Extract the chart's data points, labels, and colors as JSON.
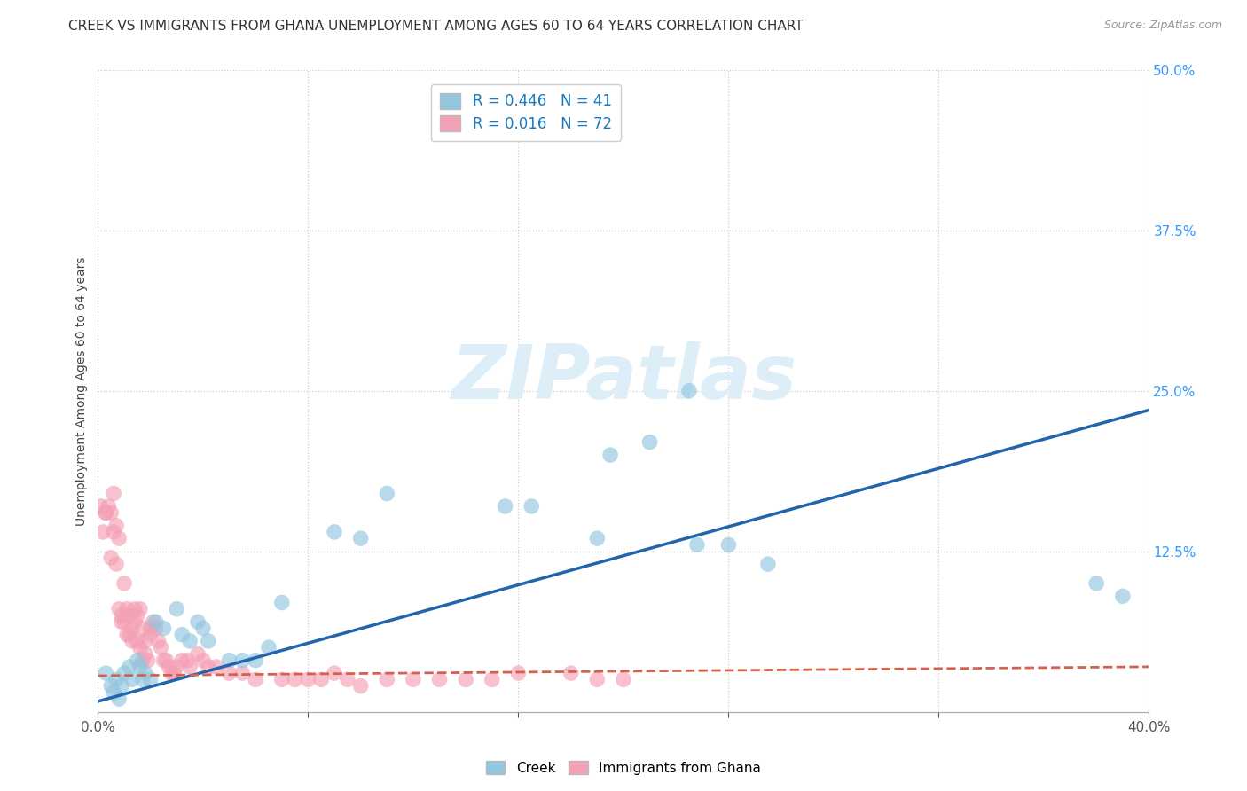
{
  "title": "CREEK VS IMMIGRANTS FROM GHANA UNEMPLOYMENT AMONG AGES 60 TO 64 YEARS CORRELATION CHART",
  "source": "Source: ZipAtlas.com",
  "ylabel": "Unemployment Among Ages 60 to 64 years",
  "xlim": [
    0.0,
    0.4
  ],
  "ylim": [
    0.0,
    0.5
  ],
  "xticks": [
    0.0,
    0.08,
    0.16,
    0.24,
    0.32,
    0.4
  ],
  "yticks": [
    0.0,
    0.125,
    0.25,
    0.375,
    0.5
  ],
  "xticklabels": [
    "0.0%",
    "",
    "",
    "",
    "",
    "40.0%"
  ],
  "yticklabels_right": [
    "",
    "12.5%",
    "25.0%",
    "37.5%",
    "50.0%"
  ],
  "creek_color": "#92c5de",
  "ghana_color": "#f4a0b5",
  "creek_R": 0.446,
  "creek_N": 41,
  "ghana_R": 0.016,
  "ghana_N": 72,
  "creek_line_color": "#2166ac",
  "ghana_line_color": "#d6604d",
  "creek_line_x": [
    0.0,
    0.4
  ],
  "creek_line_y": [
    0.008,
    0.235
  ],
  "ghana_line_x": [
    0.0,
    0.4
  ],
  "ghana_line_y": [
    0.028,
    0.035
  ],
  "creek_scatter_x": [
    0.003,
    0.005,
    0.006,
    0.007,
    0.008,
    0.009,
    0.01,
    0.012,
    0.013,
    0.015,
    0.016,
    0.017,
    0.018,
    0.02,
    0.022,
    0.025,
    0.03,
    0.032,
    0.035,
    0.038,
    0.04,
    0.042,
    0.05,
    0.055,
    0.06,
    0.065,
    0.07,
    0.09,
    0.1,
    0.11,
    0.155,
    0.165,
    0.19,
    0.195,
    0.21,
    0.225,
    0.228,
    0.24,
    0.255,
    0.38,
    0.39
  ],
  "creek_scatter_y": [
    0.03,
    0.02,
    0.015,
    0.025,
    0.01,
    0.02,
    0.03,
    0.035,
    0.025,
    0.04,
    0.035,
    0.025,
    0.03,
    0.025,
    0.07,
    0.065,
    0.08,
    0.06,
    0.055,
    0.07,
    0.065,
    0.055,
    0.04,
    0.04,
    0.04,
    0.05,
    0.085,
    0.14,
    0.135,
    0.17,
    0.16,
    0.16,
    0.135,
    0.2,
    0.21,
    0.25,
    0.13,
    0.13,
    0.115,
    0.1,
    0.09
  ],
  "ghana_scatter_x": [
    0.001,
    0.002,
    0.003,
    0.003,
    0.004,
    0.005,
    0.005,
    0.006,
    0.006,
    0.007,
    0.007,
    0.008,
    0.008,
    0.009,
    0.009,
    0.01,
    0.01,
    0.011,
    0.011,
    0.012,
    0.012,
    0.013,
    0.013,
    0.014,
    0.014,
    0.015,
    0.015,
    0.016,
    0.016,
    0.017,
    0.017,
    0.018,
    0.018,
    0.019,
    0.02,
    0.02,
    0.021,
    0.022,
    0.023,
    0.024,
    0.025,
    0.026,
    0.027,
    0.028,
    0.029,
    0.03,
    0.032,
    0.034,
    0.035,
    0.038,
    0.04,
    0.042,
    0.045,
    0.05,
    0.055,
    0.06,
    0.07,
    0.075,
    0.08,
    0.085,
    0.09,
    0.095,
    0.1,
    0.11,
    0.12,
    0.13,
    0.14,
    0.15,
    0.16,
    0.18,
    0.19,
    0.2
  ],
  "ghana_scatter_y": [
    0.16,
    0.14,
    0.155,
    0.155,
    0.16,
    0.155,
    0.12,
    0.14,
    0.17,
    0.145,
    0.115,
    0.135,
    0.08,
    0.075,
    0.07,
    0.07,
    0.1,
    0.06,
    0.08,
    0.075,
    0.06,
    0.065,
    0.055,
    0.08,
    0.07,
    0.075,
    0.055,
    0.08,
    0.05,
    0.065,
    0.04,
    0.055,
    0.045,
    0.04,
    0.06,
    0.065,
    0.07,
    0.065,
    0.055,
    0.05,
    0.04,
    0.04,
    0.035,
    0.03,
    0.03,
    0.035,
    0.04,
    0.04,
    0.035,
    0.045,
    0.04,
    0.035,
    0.035,
    0.03,
    0.03,
    0.025,
    0.025,
    0.025,
    0.025,
    0.025,
    0.03,
    0.025,
    0.02,
    0.025,
    0.025,
    0.025,
    0.025,
    0.025,
    0.03,
    0.03,
    0.025,
    0.025
  ],
  "background_color": "#ffffff",
  "grid_color": "#cccccc",
  "title_fontsize": 11,
  "axis_label_fontsize": 10,
  "tick_fontsize": 11,
  "legend_text_color": "#1a7abf",
  "watermark_color": "#ddeef8",
  "right_tick_color": "#3399ff"
}
